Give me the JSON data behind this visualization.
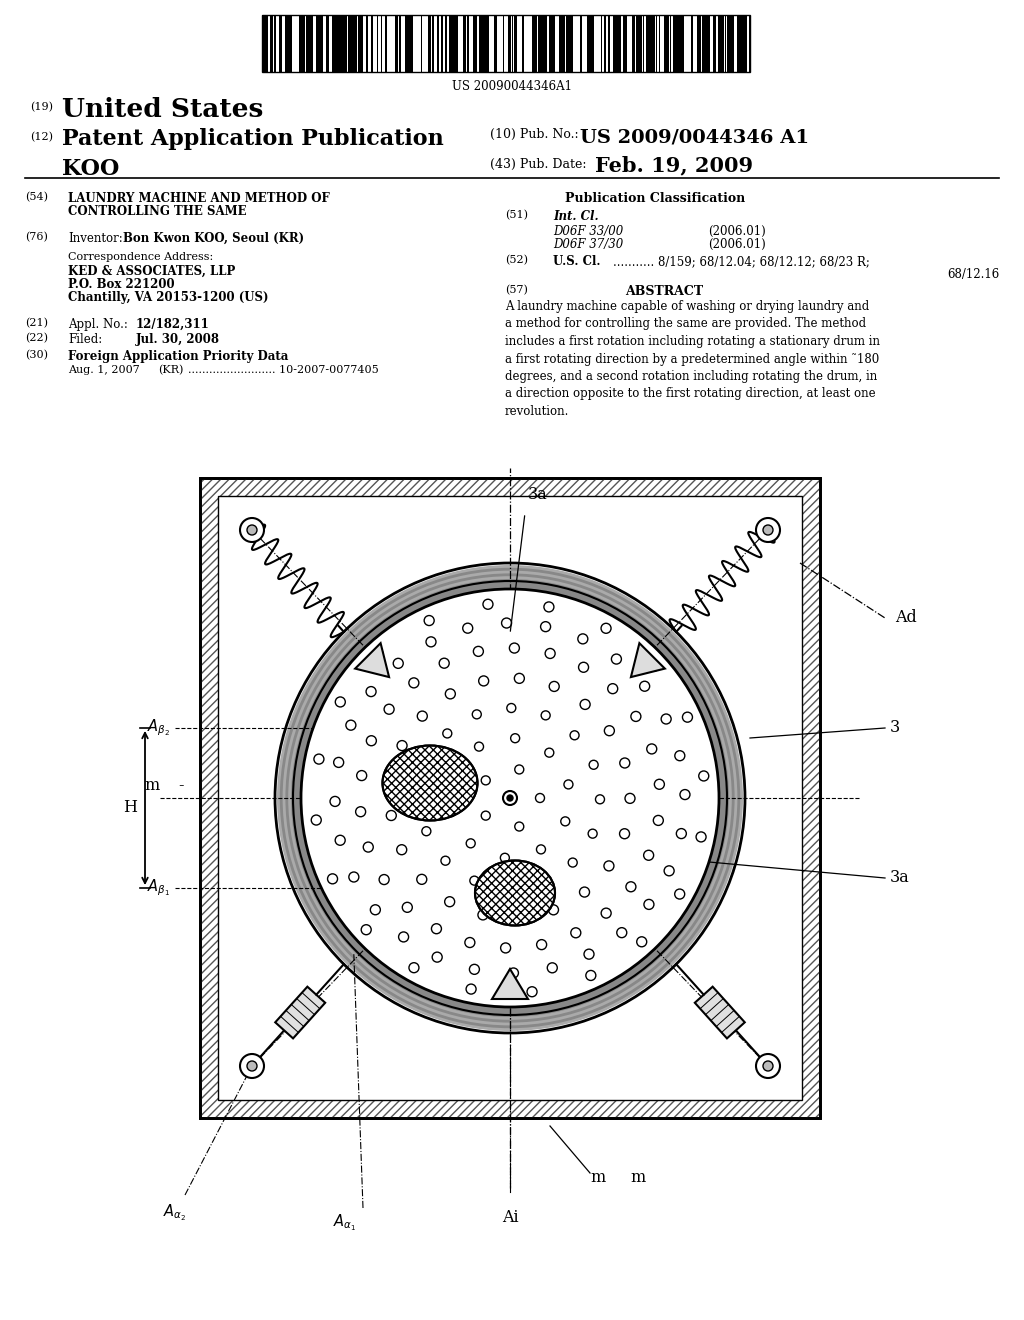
{
  "bg_color": "#ffffff",
  "patent_number": "US 20090044346A1",
  "pub_no_label": "(10) Pub. No.:",
  "pub_no_value": "US 2009/0044346 A1",
  "pub_date_label": "(43) Pub. Date:",
  "pub_date_value": "Feb. 19, 2009",
  "inventor_name": "KOO",
  "abstract_text": "A laundry machine capable of washing or drying laundry and a method for controlling the same are provided. The method includes a first rotation including rotating a stationary drum in a first rotating direction by a predetermined angle within ~180 degrees, and a second rotation including rotating the drum, in a direction opposite to the first rotating direction, at least one revolution."
}
